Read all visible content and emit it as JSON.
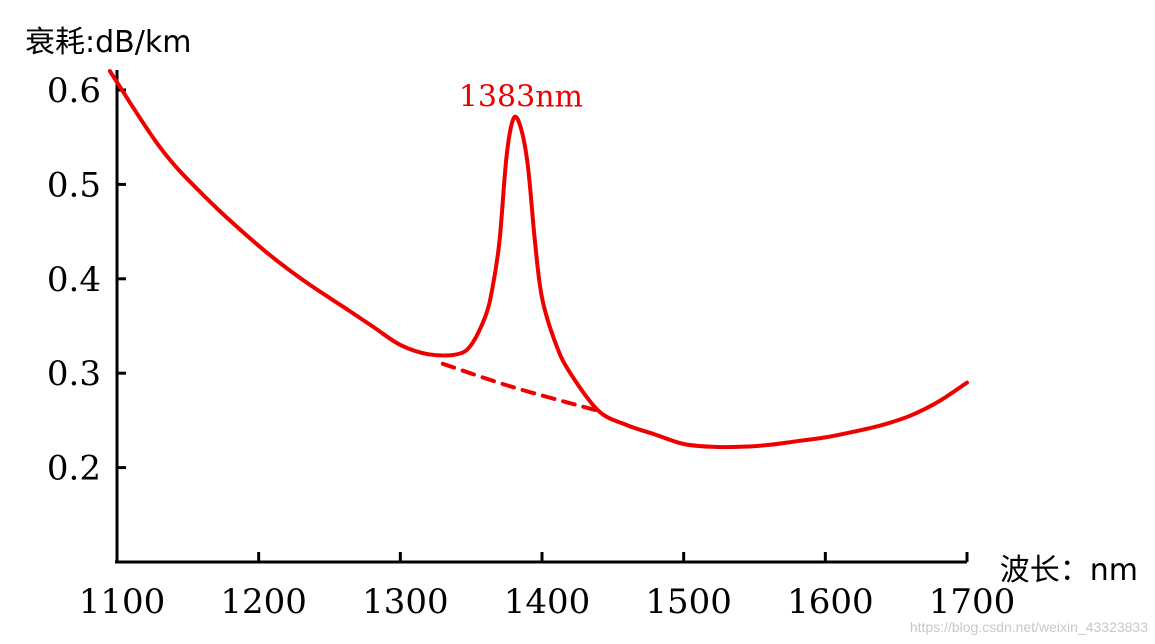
{
  "chart_data": {
    "type": "line",
    "title": "",
    "ylabel": "衰耗:dB/km",
    "xlabel": "波长：nm",
    "xlim": [
      1100,
      1700
    ],
    "ylim": [
      0.1,
      0.6
    ],
    "x_ticks": [
      1100,
      1200,
      1300,
      1400,
      1500,
      1600,
      1700
    ],
    "y_ticks": [
      0.2,
      0.3,
      0.4,
      0.5,
      0.6
    ],
    "x_tick_labels": [
      "1100",
      "1200",
      "1300",
      "1400",
      "1500",
      "1600",
      "1700"
    ],
    "y_tick_labels": [
      "0.2",
      "0.3",
      "0.4",
      "0.5",
      "0.6"
    ],
    "grid": false,
    "series": [
      {
        "style": "solid",
        "color": "#ee0000",
        "x": [
          1095,
          1130,
          1160,
          1200,
          1230,
          1260,
          1280,
          1300,
          1320,
          1340,
          1350,
          1360,
          1365,
          1370,
          1375,
          1380,
          1385,
          1390,
          1395,
          1400,
          1410,
          1420,
          1440,
          1460,
          1480,
          1500,
          1520,
          1540,
          1560,
          1580,
          1600,
          1620,
          1640,
          1660,
          1680,
          1700
        ],
        "y": [
          0.62,
          0.54,
          0.49,
          0.435,
          0.4,
          0.37,
          0.35,
          0.33,
          0.32,
          0.32,
          0.33,
          0.36,
          0.39,
          0.44,
          0.53,
          0.57,
          0.56,
          0.52,
          0.44,
          0.38,
          0.33,
          0.3,
          0.26,
          0.245,
          0.235,
          0.225,
          0.222,
          0.222,
          0.224,
          0.228,
          0.232,
          0.238,
          0.245,
          0.255,
          0.27,
          0.29
        ]
      },
      {
        "style": "dashed",
        "color": "#ee0000",
        "x": [
          1330,
          1380,
          1440
        ],
        "y": [
          0.31,
          0.285,
          0.26
        ]
      }
    ],
    "annotations": [
      {
        "text": "1383nm",
        "x": 1383,
        "y": 0.57,
        "color": "#ee0000"
      }
    ]
  },
  "watermark": "https://blog.csdn.net/weixin_43323833"
}
